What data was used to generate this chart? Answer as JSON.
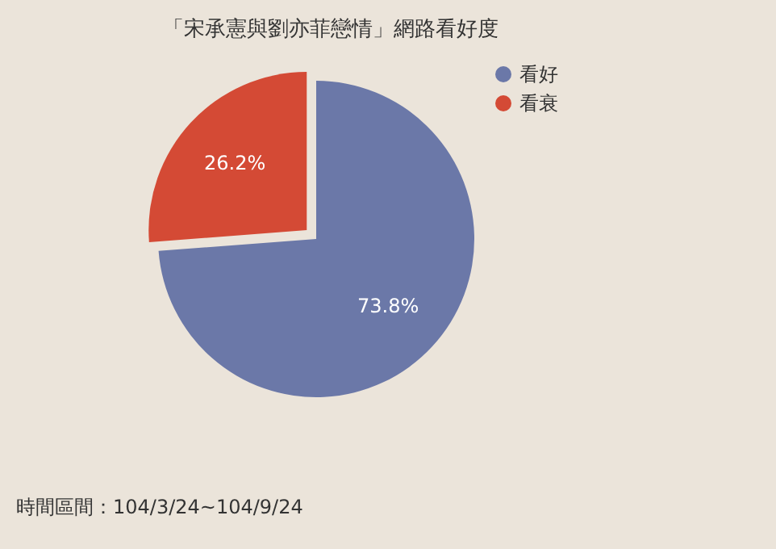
{
  "chart_data": {
    "type": "pie",
    "title": "「宋承憲與劉亦菲戀情」網路看好度",
    "categories": [
      "看好",
      "看衰"
    ],
    "values": [
      73.8,
      26.2
    ],
    "colors": [
      "#6b78a8",
      "#d44a35"
    ],
    "value_labels": [
      "73.8%",
      "26.2%"
    ],
    "legend": "top right",
    "annotations": [
      "時間區間：104/3/24~104/9/24"
    ]
  }
}
